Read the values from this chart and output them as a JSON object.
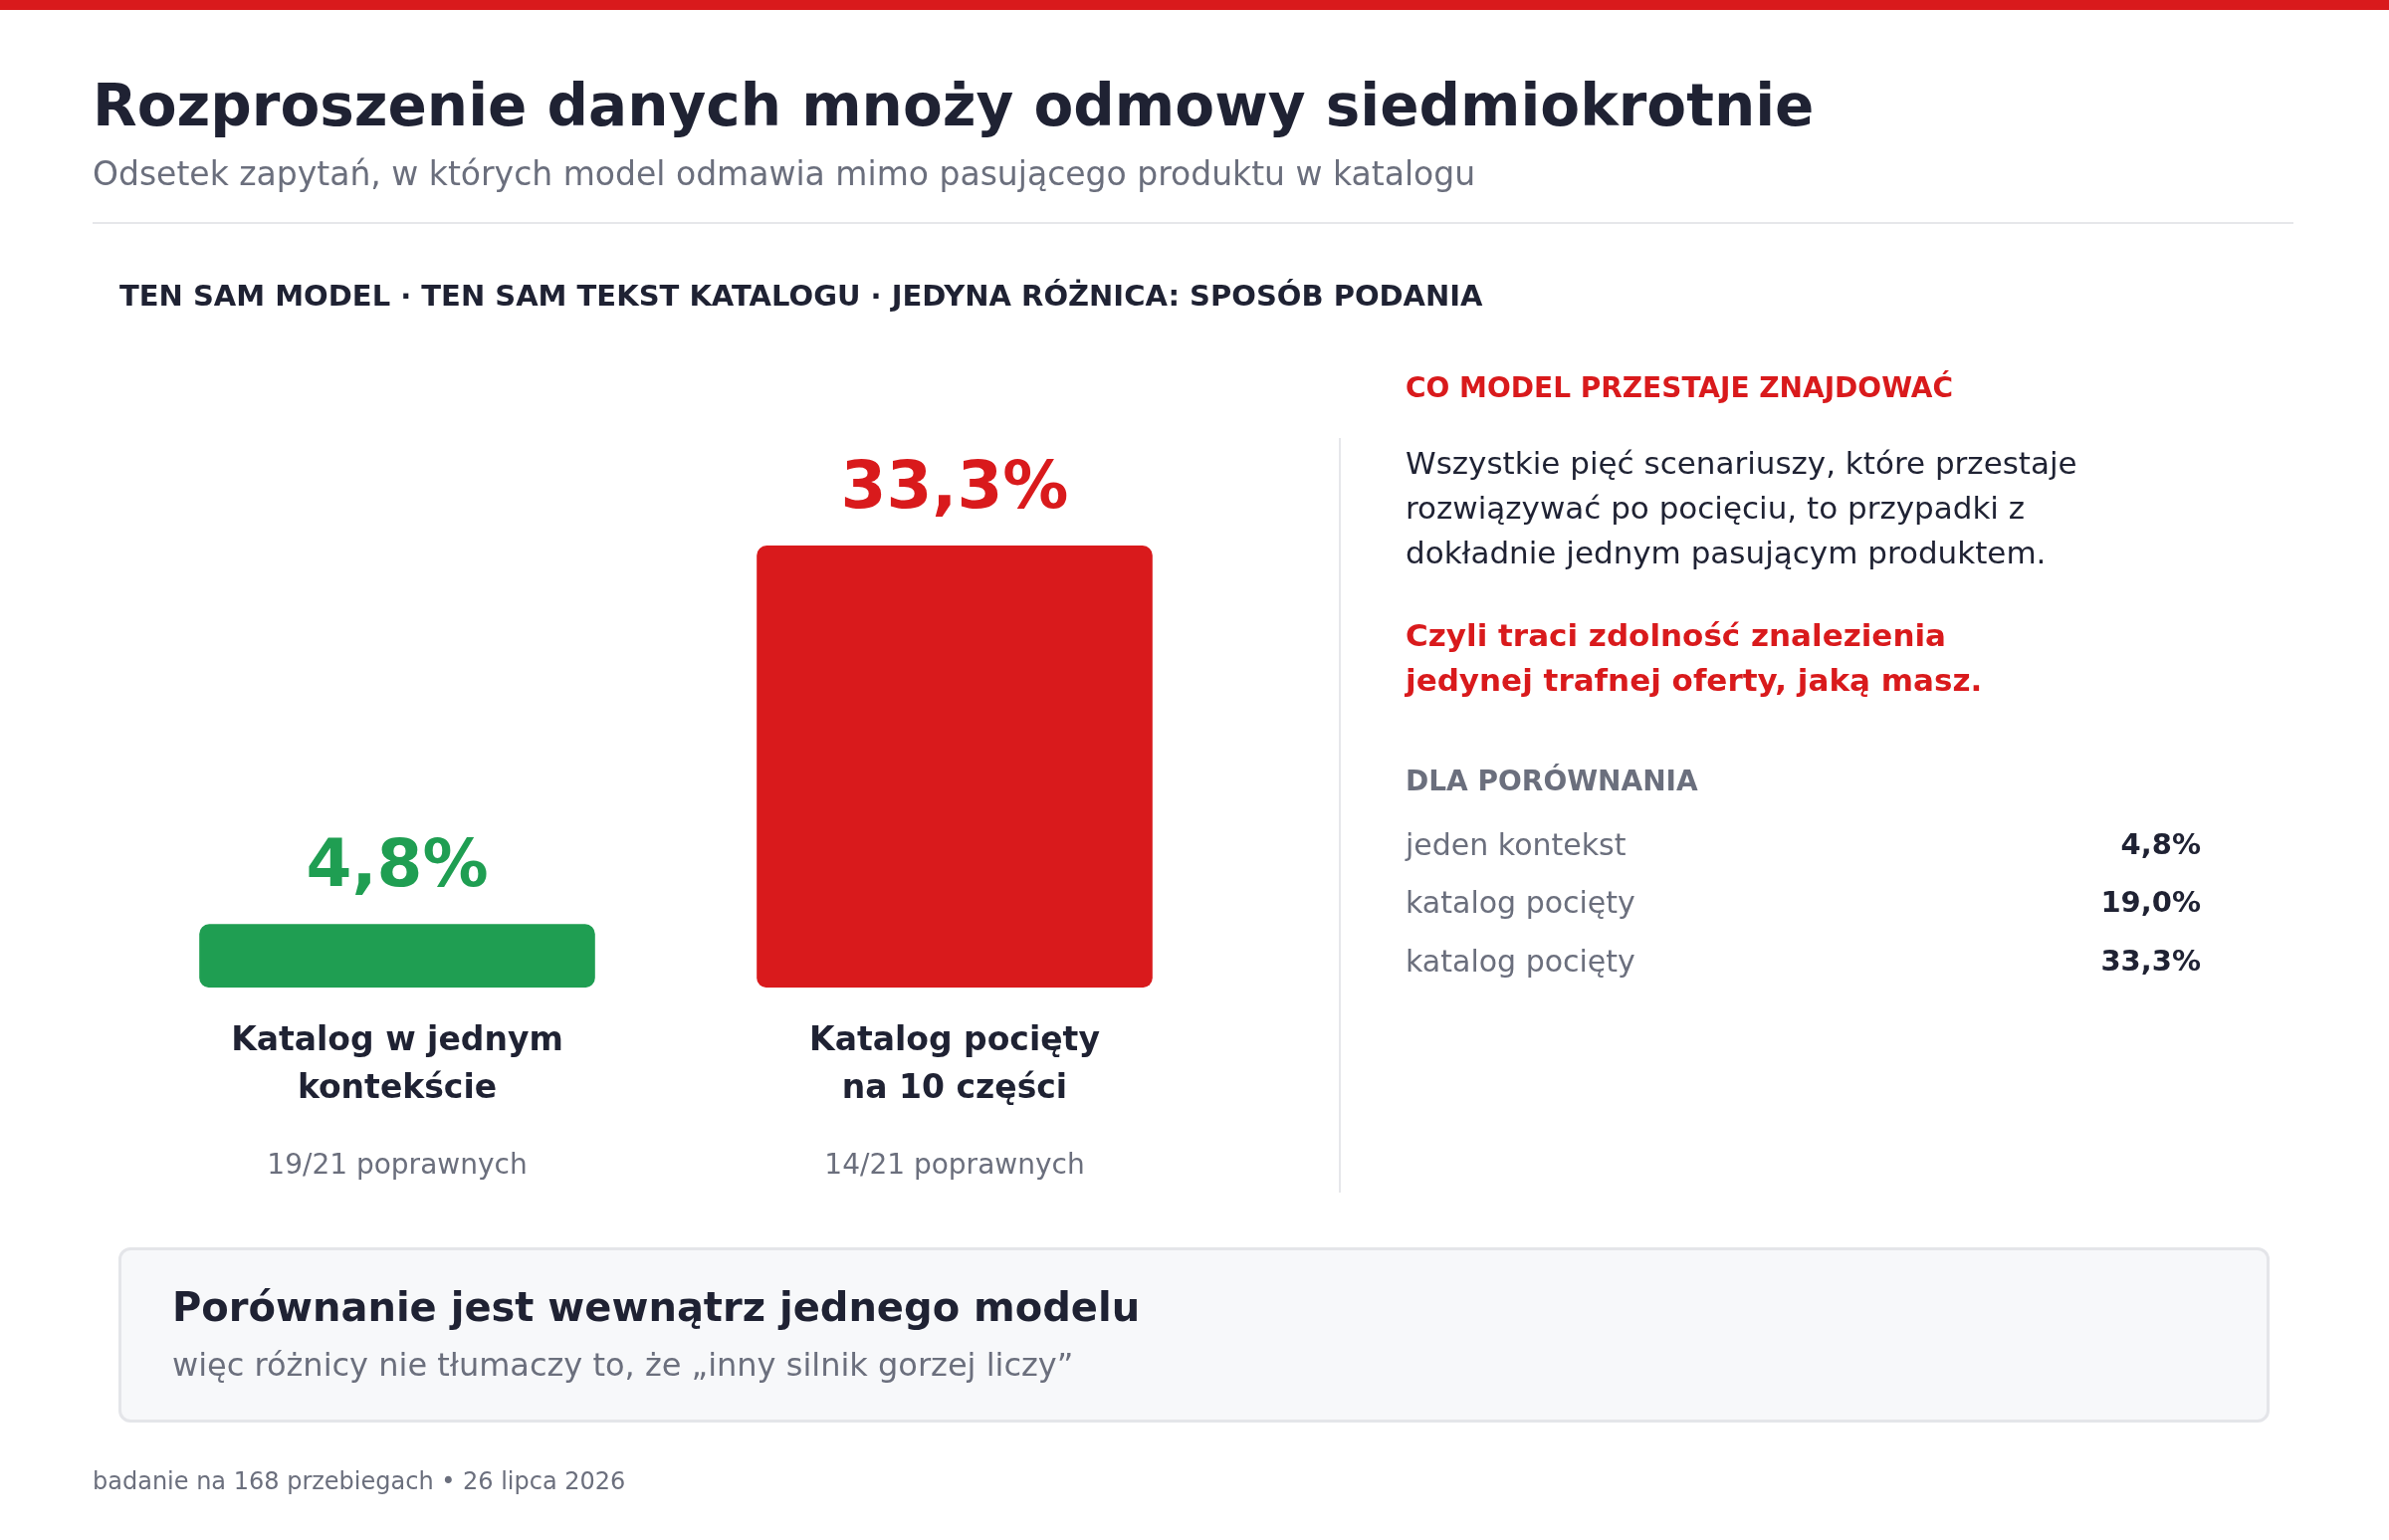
{
  "chart_data": {
    "type": "bar",
    "title": "Rozproszenie danych mnoży odmowy siedmiokrotnie",
    "subtitle": "Odsetek zapytań, w których model odmawia mimo pasującego produktu w katalogu",
    "categories": [
      "Katalog w jednym kontekście",
      "Katalog pocięty na 10 części"
    ],
    "values": [
      4.8,
      33.3
    ],
    "colors": [
      "#1f9e52",
      "#d91a1c"
    ],
    "value_labels": [
      "4,8%",
      "33,3%"
    ],
    "annotations": [
      "TEN SAM MODEL · TEN SAM TEKST KATALOGU · JEDYNA RÓŻNICA: SPOSÓB PODANIA",
      "19/21 poprawnych",
      "14/21 poprawnych",
      "CO MODEL PRZESTAJE ZNAJDOWAĆ",
      "Wszystkie pięć scenariuszy, które przestaje rozwiązywać po pocięciu, to przypadki z dokładnie jednym pasującym produktem.",
      "Czyli traci zdolność znalezienia jedynej trafnej oferty, jaką masz.",
      "DLA PORÓWNANIA",
      "jeden kontekst",
      "4,8%",
      "katalog pocięty",
      "19,0%",
      "katalog pocięty",
      "33,3%",
      "Porównanie jest wewnątrz jednego modelu",
      "więc różnicy nie tłumaczy to, że „inny silnik gorzej liczy”",
      "badanie na 168 przebiegach • 26 lipca 2026"
    ]
  }
}
